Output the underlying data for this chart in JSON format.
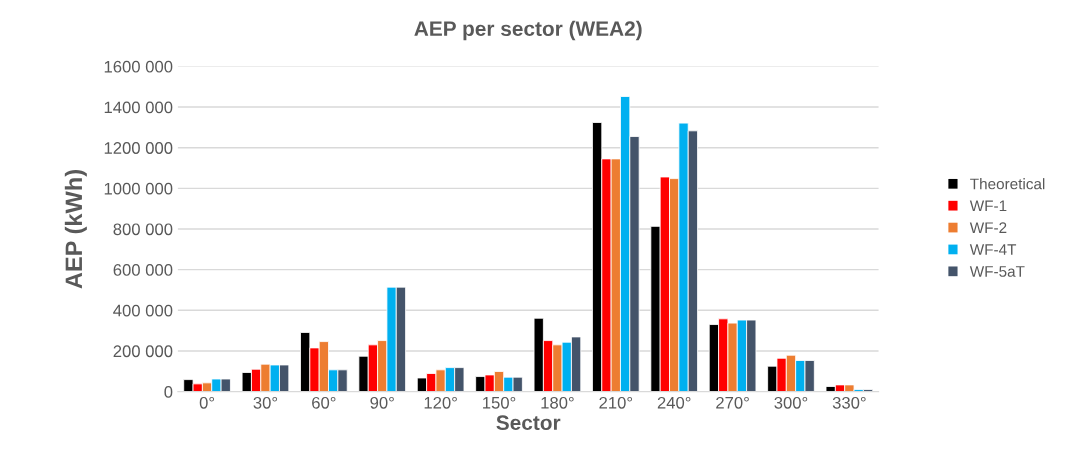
{
  "chart_data": {
    "type": "bar",
    "title": "AEP per sector (WEA2)",
    "xlabel": "Sector",
    "ylabel": "AEP (kWh)",
    "categories": [
      "0°",
      "30°",
      "60°",
      "90°",
      "120°",
      "150°",
      "180°",
      "210°",
      "240°",
      "270°",
      "300°",
      "330°"
    ],
    "series": [
      {
        "name": "Theoretical",
        "color": "#000000",
        "values": [
          59000,
          94000,
          291000,
          174000,
          67000,
          74000,
          361000,
          1324000,
          813000,
          330000,
          125000,
          25000
        ]
      },
      {
        "name": "WF-1",
        "color": "#ff0000",
        "values": [
          38000,
          110000,
          215000,
          230000,
          89000,
          82000,
          251000,
          1145000,
          1056000,
          358000,
          164000,
          33000
        ]
      },
      {
        "name": "WF-2",
        "color": "#ed7d31",
        "values": [
          43000,
          135000,
          246000,
          251000,
          107000,
          99000,
          230000,
          1145000,
          1048000,
          337000,
          179000,
          33000
        ]
      },
      {
        "name": "WF-4T",
        "color": "#00b0f0",
        "values": [
          62000,
          131000,
          107000,
          514000,
          118000,
          71000,
          243000,
          1452000,
          1321000,
          352000,
          153000,
          10000
        ]
      },
      {
        "name": "WF-5aT",
        "color": "#44546a",
        "values": [
          62000,
          131000,
          107000,
          514000,
          118000,
          71000,
          269000,
          1255000,
          1283000,
          352000,
          153000,
          10000
        ]
      }
    ],
    "ylim": [
      0,
      1600000
    ],
    "yticks": [
      0,
      {
        "value": 200000,
        "label": "200 000"
      },
      {
        "value": 400000,
        "label": "400 000"
      },
      {
        "value": 600000,
        "label": "600 000"
      },
      {
        "value": 800000,
        "label": "800 000"
      },
      {
        "value": 1000000,
        "label": "1000 000"
      },
      {
        "value": 1200000,
        "label": "1200 000"
      },
      {
        "value": 1400000,
        "label": "1400 000"
      },
      {
        "value": 1600000,
        "label": "1600 000"
      }
    ],
    "grid": "y",
    "legend": "right"
  }
}
